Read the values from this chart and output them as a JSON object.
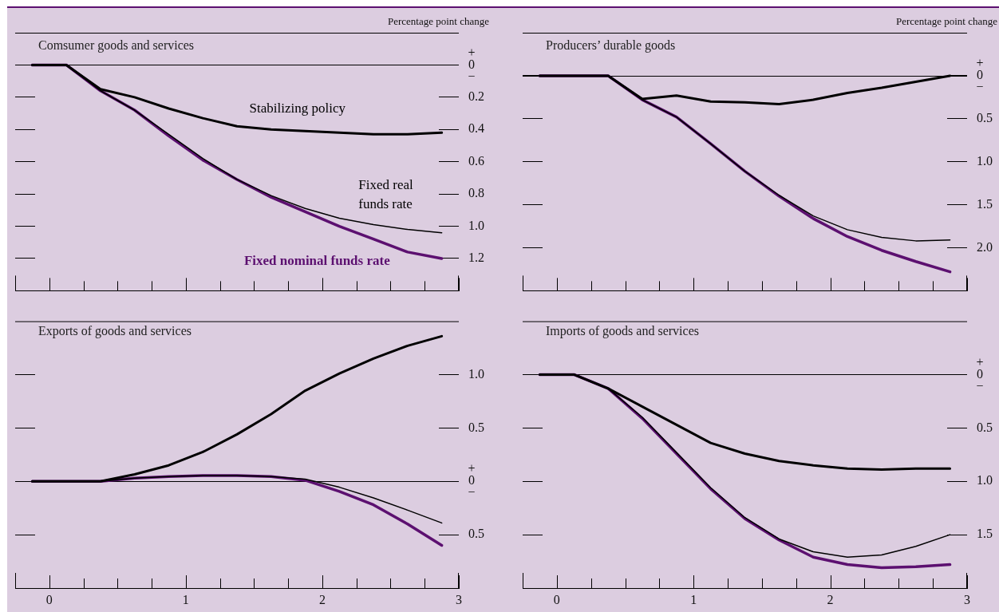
{
  "chart_data": [
    {
      "type": "line",
      "title": "Comsumer goods and services",
      "ylabel": "Percentage point change",
      "tick_labels": "y",
      "grid": "y",
      "x": [
        -0.125,
        0.125,
        0.375,
        0.625,
        0.875,
        1.125,
        1.375,
        1.625,
        1.875,
        2.125,
        2.375,
        2.625,
        2.875
      ],
      "series": [
        {
          "name": "Stabilizing policy",
          "color": "#000000",
          "values": [
            0,
            0,
            -0.15,
            -0.2,
            -0.27,
            -0.33,
            -0.38,
            -0.4,
            -0.41,
            -0.42,
            -0.43,
            -0.43,
            -0.42
          ]
        },
        {
          "name": "Fixed real funds rate",
          "color": "#000000",
          "values": [
            0,
            0,
            -0.16,
            -0.28,
            -0.43,
            -0.58,
            -0.71,
            -0.81,
            -0.89,
            -0.95,
            -0.99,
            -1.02,
            -1.04
          ]
        },
        {
          "name": "Fixed nominal funds rate",
          "color": "#5c1070",
          "values": [
            0,
            0,
            -0.16,
            -0.28,
            -0.44,
            -0.59,
            -0.71,
            -0.82,
            -0.91,
            -1.0,
            -1.08,
            -1.16,
            -1.2
          ]
        }
      ],
      "xlim": [
        -0.25,
        3
      ],
      "xticks": [
        0,
        {
          "value": 0.25,
          "label": null
        },
        {
          "value": 0.5,
          "label": null
        },
        {
          "value": 0.75,
          "label": null
        },
        1,
        {
          "value": 1.25,
          "label": null
        },
        {
          "value": 1.5,
          "label": null
        },
        {
          "value": 1.75,
          "label": null
        },
        2,
        {
          "value": 2.25,
          "label": null
        },
        {
          "value": 2.5,
          "label": null
        },
        {
          "value": 2.75,
          "label": null
        },
        3
      ],
      "ylim": [
        -1.4,
        0.2
      ],
      "yticks": [
        {
          "value": 0,
          "label": "+\n0\n−"
        },
        {
          "value": -0.2,
          "label": "0.2"
        },
        {
          "value": -0.4,
          "label": "0.4"
        },
        {
          "value": -0.6,
          "label": "0.6"
        },
        {
          "value": -0.8,
          "label": "0.8"
        },
        {
          "value": -1.0,
          "label": "1.0"
        },
        {
          "value": -1.2,
          "label": "1.2"
        }
      ],
      "ref_lines": [
        {
          "axis": "y",
          "value": 0,
          "color": "#000000"
        }
      ]
    },
    {
      "type": "line",
      "title": "Producers’ durable goods",
      "ylabel": "Percentage point change",
      "tick_labels": "y",
      "grid": "y",
      "x": [
        -0.125,
        0.125,
        0.375,
        0.625,
        0.875,
        1.125,
        1.375,
        1.625,
        1.875,
        2.125,
        2.375,
        2.625,
        2.875
      ],
      "series": [
        {
          "color": "#000000",
          "values": [
            0,
            0,
            0,
            -0.27,
            -0.23,
            -0.3,
            -0.31,
            -0.33,
            -0.28,
            -0.2,
            -0.14,
            -0.07,
            0
          ]
        },
        {
          "color": "#000000",
          "values": [
            0,
            0,
            0,
            -0.28,
            -0.48,
            -0.79,
            -1.11,
            -1.39,
            -1.63,
            -1.79,
            -1.88,
            -1.92,
            -1.91
          ]
        },
        {
          "color": "#5c1070",
          "values": [
            0,
            0,
            0,
            -0.28,
            -0.48,
            -0.79,
            -1.11,
            -1.4,
            -1.66,
            -1.87,
            -2.03,
            -2.16,
            -2.28
          ]
        }
      ],
      "xlim": [
        -0.25,
        3
      ],
      "xticks": [
        0,
        {
          "value": 0.25,
          "label": null
        },
        {
          "value": 0.5,
          "label": null
        },
        {
          "value": 0.75,
          "label": null
        },
        1,
        {
          "value": 1.25,
          "label": null
        },
        {
          "value": 1.5,
          "label": null
        },
        {
          "value": 1.75,
          "label": null
        },
        2,
        {
          "value": 2.25,
          "label": null
        },
        {
          "value": 2.5,
          "label": null
        },
        {
          "value": 2.75,
          "label": null
        },
        3
      ],
      "ylim": [
        -2.5,
        0.5
      ],
      "yticks": [
        {
          "value": 0,
          "label": "+\n0\n−"
        },
        {
          "value": -0.5,
          "label": "0.5"
        },
        {
          "value": -1.0,
          "label": "1.0"
        },
        {
          "value": -1.5,
          "label": "1.5"
        },
        {
          "value": -2.0,
          "label": "2.0"
        }
      ],
      "ref_lines": [
        {
          "axis": "y",
          "value": 0,
          "color": "#000000"
        }
      ]
    },
    {
      "type": "line",
      "title": "Exports of goods and services",
      "grid": "y",
      "x": [
        -0.125,
        0.125,
        0.375,
        0.625,
        0.875,
        1.125,
        1.375,
        1.625,
        1.875,
        2.125,
        2.375,
        2.625,
        2.875
      ],
      "series": [
        {
          "color": "#000000",
          "values": [
            0,
            0,
            0,
            0.065,
            0.15,
            0.275,
            0.44,
            0.63,
            0.85,
            1.01,
            1.15,
            1.27,
            1.36
          ]
        },
        {
          "color": "#000000",
          "values": [
            0,
            0,
            0,
            0.03,
            0.045,
            0.055,
            0.055,
            0.045,
            0.02,
            -0.055,
            -0.155,
            -0.27,
            -0.39
          ]
        },
        {
          "color": "#5c1070",
          "values": [
            0,
            0,
            0,
            0.03,
            0.045,
            0.055,
            0.055,
            0.045,
            0.01,
            -0.095,
            -0.22,
            -0.4,
            -0.6
          ]
        }
      ],
      "xlim": [
        -0.25,
        3
      ],
      "xticks": [
        0,
        {
          "value": 0.25,
          "label": null
        },
        {
          "value": 0.5,
          "label": null
        },
        {
          "value": 0.75,
          "label": null
        },
        1,
        {
          "value": 1.25,
          "label": null
        },
        {
          "value": 1.5,
          "label": null
        },
        {
          "value": 1.75,
          "label": null
        },
        2,
        {
          "value": 2.25,
          "label": null
        },
        {
          "value": 2.5,
          "label": null
        },
        {
          "value": 2.75,
          "label": null
        },
        3
      ],
      "ylim": [
        -1.0,
        1.5
      ],
      "yticks": [
        {
          "value": 1.0,
          "label": "1.0"
        },
        0.5,
        {
          "value": 0,
          "label": "+\n0\n−"
        },
        {
          "value": -0.5,
          "label": "0.5"
        }
      ],
      "ref_lines": [
        {
          "axis": "y",
          "value": 0,
          "color": "#000000"
        }
      ]
    },
    {
      "type": "line",
      "title": "Imports of goods and services",
      "grid": "y",
      "x": [
        -0.125,
        0.125,
        0.375,
        0.625,
        0.875,
        1.125,
        1.375,
        1.625,
        1.875,
        2.125,
        2.375,
        2.625,
        2.875
      ],
      "series": [
        {
          "color": "#000000",
          "values": [
            0,
            0,
            -0.13,
            -0.3,
            -0.47,
            -0.64,
            -0.74,
            -0.81,
            -0.85,
            -0.88,
            -0.89,
            -0.88,
            -0.88
          ]
        },
        {
          "color": "#000000",
          "values": [
            0,
            0,
            -0.13,
            -0.4,
            -0.73,
            -1.06,
            -1.34,
            -1.54,
            -1.66,
            -1.71,
            -1.69,
            -1.61,
            -1.5
          ]
        },
        {
          "color": "#5c1070",
          "values": [
            0,
            0,
            -0.13,
            -0.41,
            -0.74,
            -1.07,
            -1.35,
            -1.55,
            -1.71,
            -1.78,
            -1.81,
            -1.8,
            -1.78
          ]
        }
      ],
      "xlim": [
        -0.25,
        3
      ],
      "xticks": [
        0,
        {
          "value": 0.25,
          "label": null
        },
        {
          "value": 0.5,
          "label": null
        },
        {
          "value": 0.75,
          "label": null
        },
        1,
        {
          "value": 1.25,
          "label": null
        },
        {
          "value": 1.5,
          "label": null
        },
        {
          "value": 1.75,
          "label": null
        },
        2,
        {
          "value": 2.25,
          "label": null
        },
        {
          "value": 2.5,
          "label": null
        },
        {
          "value": 2.75,
          "label": null
        },
        3
      ],
      "ylim": [
        -2.0,
        0.5
      ],
      "yticks": [
        {
          "value": 0,
          "label": "+\n0\n−"
        },
        {
          "value": -0.5,
          "label": "0.5"
        },
        {
          "value": -1.0,
          "label": "1.0"
        },
        {
          "value": -1.5,
          "label": "1.5"
        }
      ],
      "ref_lines": [
        {
          "axis": "y",
          "value": 0,
          "color": "#000000"
        }
      ]
    }
  ]
}
